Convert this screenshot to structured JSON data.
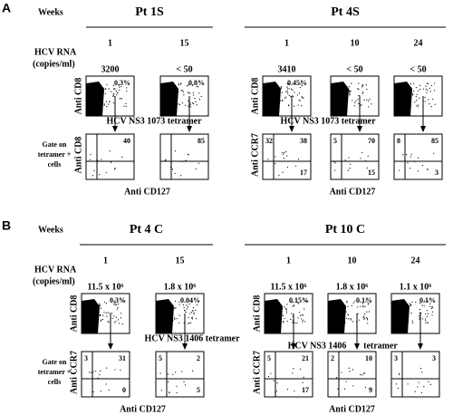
{
  "panels": [
    {
      "label": "A",
      "row_header": "Weeks",
      "rna_label": "HCV RNA",
      "rna_unit": "(copies/ml)",
      "gate_label": [
        "Gate on",
        "tetramer +",
        "cells"
      ],
      "patients": [
        {
          "name": "Pt 1S",
          "y_top": "Anti CD8",
          "y_bottom": "Anti CD8",
          "x_bottom": "Anti CD127",
          "tetramer": [
            "HCV NS3 1073 tetramer"
          ],
          "plots": [
            {
              "week": "1",
              "rna": "3200",
              "percent": "0.3%",
              "quadrants": {
                "ur": "40"
              }
            },
            {
              "week": "15",
              "rna": "< 50",
              "percent": "0.8%",
              "quadrants": {
                "ur": "85"
              }
            }
          ]
        },
        {
          "name": "Pt 4S",
          "y_top": "Anti CD8",
          "y_bottom": "Anti CCR7",
          "x_bottom": "Anti CD127",
          "tetramer": [
            "HCV NS3 1073 tetramer"
          ],
          "plots": [
            {
              "week": "1",
              "rna": "3410",
              "percent": "0.45%",
              "quadrants": {
                "ul": "32",
                "ur": "38",
                "lr": "17"
              }
            },
            {
              "week": "10",
              "rna": "< 50",
              "quadrants": {
                "ul": "5",
                "ur": "70",
                "lr": "15"
              }
            },
            {
              "week": "24",
              "rna": "< 50",
              "quadrants": {
                "ul": "8",
                "ur": "85",
                "lr": "3"
              }
            }
          ]
        }
      ]
    },
    {
      "label": "B",
      "row_header": "Weeks",
      "rna_label": "HCV RNA",
      "rna_unit": "(copies/ml)",
      "gate_label": [
        "Gate on",
        "tetramer +",
        "cells"
      ],
      "patients": [
        {
          "name": "Pt 4 C",
          "y_top": "Anti CD8",
          "y_bottom": "Anti CCR7",
          "x_bottom": "Anti CD127",
          "tetramer": [
            "HCV NS3 1406 tetramer"
          ],
          "plots": [
            {
              "week": "1",
              "rna": "11.5 x 10⁶",
              "percent": "0.3%",
              "quadrants": {
                "ul": "3",
                "ur": "31",
                "lr": "0"
              }
            },
            {
              "week": "15",
              "rna": "1.8 x 10⁶",
              "percent": "0.04%",
              "quadrants": {
                "ul": "5",
                "ur": "2",
                "lr": "5"
              }
            }
          ]
        },
        {
          "name": "Pt 10 C",
          "y_top": "Anti CD8",
          "y_bottom": "Anti CCR7",
          "x_bottom": "Anti CD127",
          "tetramer": [
            "HCV NS3 1406",
            "tetramer"
          ],
          "plots": [
            {
              "week": "1",
              "rna": "11.5 x 10⁶",
              "percent": "0.15%",
              "quadrants": {
                "ul": "5",
                "ur": "21",
                "lr": "17"
              }
            },
            {
              "week": "10",
              "rna": "1.8 x 10⁶",
              "percent": "0.1%",
              "quadrants": {
                "ul": "2",
                "ur": "10",
                "lr": "9"
              }
            },
            {
              "week": "24",
              "rna": "1.1 x 10⁶",
              "percent": "0.1%",
              "quadrants": {
                "ul": "3",
                "ur": "3"
              }
            }
          ]
        }
      ]
    }
  ]
}
